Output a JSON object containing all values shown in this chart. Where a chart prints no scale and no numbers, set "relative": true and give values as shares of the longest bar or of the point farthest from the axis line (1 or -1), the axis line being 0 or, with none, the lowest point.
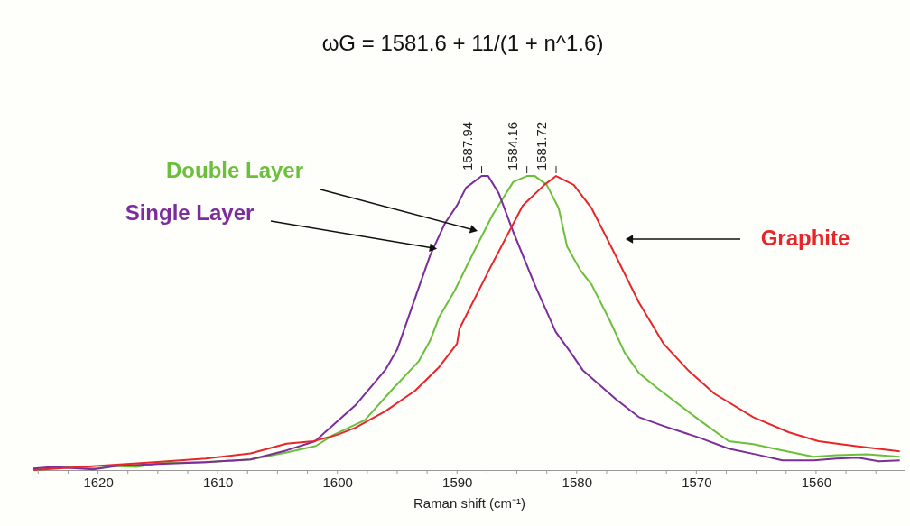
{
  "chart_data": {
    "type": "line",
    "title": "ωG = 1581.6 + 11/(1 + n^1.6)",
    "xlabel": "Raman shift (cm⁻¹)",
    "relative": true,
    "legend": false,
    "marker": "none",
    "line_style": "solid",
    "xlim": [
      1625.4,
      1552.6
    ],
    "xticks": [
      {
        "value": 1625,
        "label": null
      },
      {
        "value": 1622.5,
        "label": null
      },
      1620,
      {
        "value": 1617.5,
        "label": null
      },
      {
        "value": 1615,
        "label": null
      },
      {
        "value": 1612.5,
        "label": null
      },
      1610,
      {
        "value": 1607.5,
        "label": null
      },
      {
        "value": 1605,
        "label": null
      },
      {
        "value": 1602.5,
        "label": null
      },
      1600,
      {
        "value": 1597.5,
        "label": null
      },
      {
        "value": 1595,
        "label": null
      },
      {
        "value": 1592.5,
        "label": null
      },
      1590,
      {
        "value": 1587.5,
        "label": null
      },
      {
        "value": 1585,
        "label": null
      },
      {
        "value": 1582.5,
        "label": null
      },
      1580,
      {
        "value": 1577.5,
        "label": null
      },
      {
        "value": 1575,
        "label": null
      },
      {
        "value": 1572.5,
        "label": null
      },
      1570,
      {
        "value": 1567.5,
        "label": null
      },
      {
        "value": 1565,
        "label": null
      },
      {
        "value": 1562.5,
        "label": null
      },
      1560,
      {
        "value": 1557.5,
        "label": null
      },
      {
        "value": 1555,
        "label": null
      }
    ],
    "series": [
      {
        "name": "Double Layer",
        "color": "#6cbf3c",
        "x": [
          1625.4,
          1623.5,
          1620.2,
          1618.7,
          1616.8,
          1614.75,
          1611,
          1607.25,
          1604.25,
          1601.8,
          1600.3,
          1597.7,
          1595.5,
          1593.2,
          1592.25,
          1591.5,
          1590.2,
          1588.5,
          1587,
          1585.3,
          1584.16,
          1583.5,
          1582.5,
          1581.5,
          1580.8,
          1579.7,
          1578.75,
          1577.25,
          1576,
          1574.8,
          1573.3,
          1569.75,
          1567.3,
          1565.25,
          1562.8,
          1560.2,
          1558.3,
          1555.75,
          1553
        ],
        "values": [
          0.0,
          0.011,
          0.005,
          0.014,
          0.011,
          0.024,
          0.027,
          0.036,
          0.06,
          0.082,
          0.12,
          0.17,
          0.27,
          0.37,
          0.44,
          0.52,
          0.61,
          0.75,
          0.87,
          0.98,
          1.0,
          1.0,
          0.97,
          0.89,
          0.76,
          0.68,
          0.63,
          0.51,
          0.4,
          0.33,
          0.28,
          0.17,
          0.098,
          0.088,
          0.067,
          0.045,
          0.051,
          0.054,
          0.045
        ]
      },
      {
        "name": "Single Layer",
        "color": "#7b2d9b",
        "x": [
          1625.4,
          1623.75,
          1620.4,
          1618.5,
          1615.5,
          1611,
          1607.25,
          1604.25,
          1601.85,
          1601.0,
          1598.5,
          1596,
          1595,
          1593.2,
          1592.25,
          1591,
          1590,
          1589.25,
          1587.94,
          1587.4,
          1586.5,
          1585.3,
          1583.5,
          1581.75,
          1580.5,
          1579.5,
          1576.7,
          1574.8,
          1572.75,
          1569.75,
          1567.3,
          1564.75,
          1562.8,
          1560.2,
          1558.3,
          1556.5,
          1554.75,
          1553
        ],
        "values": [
          0.005,
          0.011,
          0.002,
          0.014,
          0.02,
          0.027,
          0.036,
          0.067,
          0.098,
          0.13,
          0.22,
          0.34,
          0.41,
          0.62,
          0.73,
          0.84,
          0.9,
          0.96,
          1.0,
          1.0,
          0.94,
          0.81,
          0.63,
          0.47,
          0.4,
          0.34,
          0.24,
          0.18,
          0.15,
          0.11,
          0.073,
          0.051,
          0.033,
          0.033,
          0.039,
          0.042,
          0.03,
          0.033
        ]
      },
      {
        "name": "Graphite",
        "color": "#e8262a",
        "x": [
          1625.4,
          1620.2,
          1615.3,
          1611,
          1607.25,
          1604.25,
          1602,
          1600,
          1598.5,
          1596,
          1593.5,
          1591.5,
          1590,
          1589.8,
          1587.2,
          1584.5,
          1582.7,
          1581.72,
          1580.25,
          1578.75,
          1577,
          1574.8,
          1572.75,
          1570.7,
          1568.5,
          1565.25,
          1562.25,
          1559.8,
          1556.8,
          1553
        ],
        "values": [
          0.0,
          0.014,
          0.027,
          0.039,
          0.057,
          0.09,
          0.098,
          0.12,
          0.144,
          0.2,
          0.27,
          0.35,
          0.43,
          0.48,
          0.69,
          0.9,
          0.97,
          1.0,
          0.97,
          0.89,
          0.75,
          0.57,
          0.43,
          0.34,
          0.26,
          0.18,
          0.128,
          0.098,
          0.082,
          0.064
        ]
      }
    ],
    "annotations": [
      {
        "text": "1587.94",
        "x": 1587.94,
        "y": 1.0
      },
      {
        "text": "1584.16",
        "x": 1584.16,
        "y": 1.0
      },
      {
        "text": "1581.72",
        "x": 1581.72,
        "y": 1.0
      }
    ]
  }
}
